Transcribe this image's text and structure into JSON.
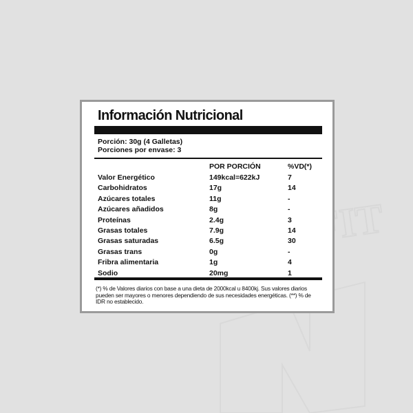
{
  "title": "Información Nutricional",
  "serving": {
    "portion": "Porción: 30g (4 Galletas)",
    "per_package": "Porciones por envase: 3"
  },
  "columns": {
    "per_portion": "POR PORCIÓN",
    "dv": "%VD(*)"
  },
  "rows": [
    {
      "name": "Valor Energético",
      "amount": "149kcal=622kJ",
      "dv": "7"
    },
    {
      "name": "Carbohidratos",
      "amount": "17g",
      "dv": "14"
    },
    {
      "name": "Azúcares totales",
      "amount": "11g",
      "dv": "-"
    },
    {
      "name": "Azúcares añadidos",
      "amount": "8g",
      "dv": "-"
    },
    {
      "name": "Proteínas",
      "amount": "2.4g",
      "dv": "3"
    },
    {
      "name": "Grasas totales",
      "amount": "7.9g",
      "dv": "14"
    },
    {
      "name": "Grasas saturadas",
      "amount": "6.5g",
      "dv": "30"
    },
    {
      "name": "Grasas trans",
      "amount": "0g",
      "dv": "-"
    },
    {
      "name": "Fribra alimentaria",
      "amount": "1g",
      "dv": "4"
    },
    {
      "name": "Sodio",
      "amount": "20mg",
      "dv": "1"
    }
  ],
  "footnote": "(*) % de Valores diarios con base a una dieta de 2000kcal u 8400kj. Sus valores diarios pueden ser mayores o menores dependiendo de sus necesidades energéticas. (**) % de IDR no establecido.",
  "watermark": "FIT"
}
